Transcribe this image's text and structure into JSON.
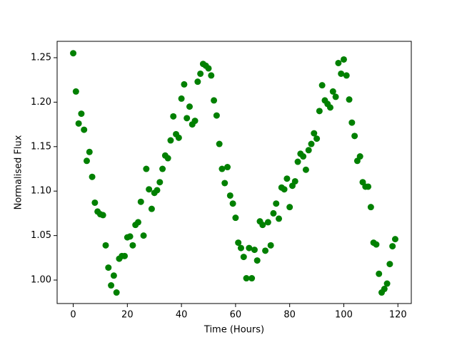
{
  "chart_data": {
    "type": "scatter",
    "xlabel": "Time (Hours)",
    "ylabel": "Normalised Flux",
    "color": "#008000",
    "x": [
      0,
      1,
      2,
      3,
      4,
      5,
      6,
      7,
      8,
      9,
      10,
      11,
      12,
      13,
      14,
      15,
      16,
      17,
      18,
      19,
      20,
      21,
      22,
      23,
      24,
      25,
      26,
      27,
      28,
      29,
      30,
      31,
      32,
      33,
      34,
      35,
      36,
      37,
      38,
      39,
      40,
      41,
      42,
      43,
      44,
      45,
      46,
      47,
      48,
      49,
      50,
      51,
      52,
      53,
      54,
      55,
      56,
      57,
      58,
      59,
      60,
      61,
      62,
      63,
      64,
      65,
      66,
      67,
      68,
      69,
      70,
      71,
      72,
      73,
      74,
      75,
      76,
      77,
      78,
      79,
      80,
      81,
      82,
      83,
      84,
      85,
      86,
      87,
      88,
      89,
      90,
      91,
      92,
      93,
      94,
      95,
      96,
      97,
      98,
      99,
      100,
      101,
      102,
      103,
      104,
      105,
      106,
      107,
      108,
      109,
      110,
      111,
      112,
      113,
      114,
      115,
      116,
      117,
      118,
      119
    ],
    "values": [
      1.255,
      1.212,
      1.176,
      1.187,
      1.169,
      1.134,
      1.144,
      1.116,
      1.087,
      1.077,
      1.074,
      1.073,
      1.039,
      1.014,
      0.994,
      1.005,
      0.986,
      1.024,
      1.027,
      1.027,
      1.048,
      1.049,
      1.039,
      1.062,
      1.065,
      1.088,
      1.05,
      1.125,
      1.102,
      1.08,
      1.098,
      1.101,
      1.11,
      1.125,
      1.14,
      1.137,
      1.157,
      1.184,
      1.164,
      1.16,
      1.204,
      1.22,
      1.182,
      1.195,
      1.175,
      1.179,
      1.223,
      1.232,
      1.243,
      1.241,
      1.238,
      1.23,
      1.202,
      1.185,
      1.153,
      1.125,
      1.109,
      1.127,
      1.095,
      1.086,
      1.07,
      1.042,
      1.036,
      1.026,
      1.002,
      1.036,
      1.002,
      1.034,
      1.022,
      1.066,
      1.062,
      1.033,
      1.065,
      1.039,
      1.075,
      1.086,
      1.069,
      1.104,
      1.102,
      1.114,
      1.082,
      1.106,
      1.111,
      1.133,
      1.142,
      1.139,
      1.124,
      1.146,
      1.153,
      1.165,
      1.159,
      1.19,
      1.219,
      1.202,
      1.198,
      1.194,
      1.212,
      1.206,
      1.244,
      1.232,
      1.248,
      1.23,
      1.203,
      1.177,
      1.162,
      1.134,
      1.139,
      1.11,
      1.105,
      1.105,
      1.082,
      1.042,
      1.04,
      1.007,
      0.986,
      0.99,
      0.996,
      1.018,
      1.038,
      1.046
    ],
    "xlim": [
      -5.95,
      124.95
    ],
    "xticks": [
      0,
      20,
      40,
      60,
      80,
      100,
      120
    ],
    "ylim": [
      0.9736,
      1.2684
    ],
    "yticks": [
      {
        "value": 1.0,
        "label": "1.00"
      },
      {
        "value": 1.05,
        "label": "1.05"
      },
      {
        "value": 1.1,
        "label": "1.10"
      },
      {
        "value": 1.15,
        "label": "1.15"
      },
      {
        "value": 1.2,
        "label": "1.20"
      },
      {
        "value": 1.25,
        "label": "1.25"
      }
    ],
    "grid": false
  }
}
